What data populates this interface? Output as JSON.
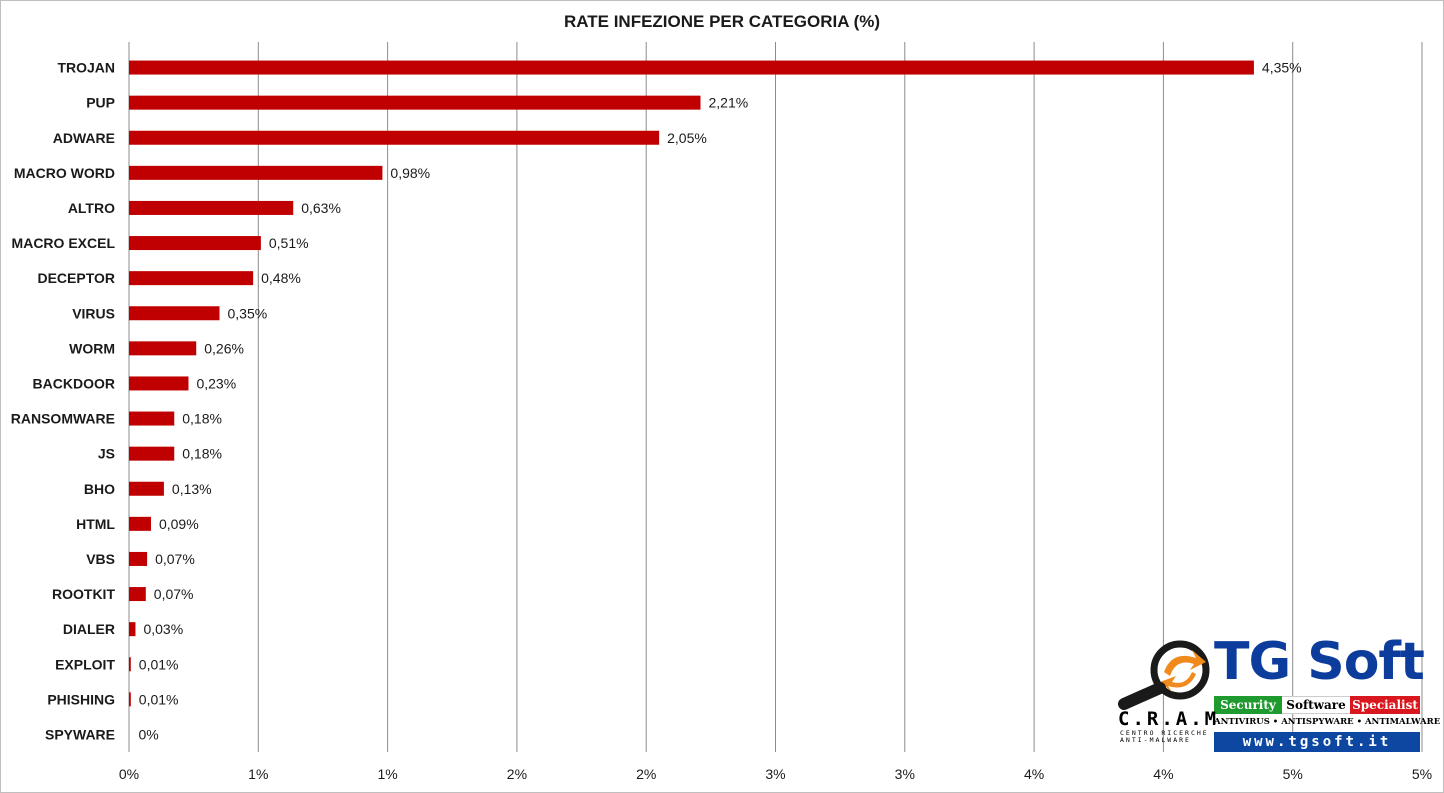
{
  "chart_data": {
    "type": "bar",
    "orientation": "horizontal",
    "title": "RATE INFEZIONE PER CATEGORIA (%)",
    "categories": [
      "TROJAN",
      "PUP",
      "ADWARE",
      "MACRO WORD",
      "ALTRO",
      "MACRO EXCEL",
      "DECEPTOR",
      "VIRUS",
      "WORM",
      "BACKDOOR",
      "RANSOMWARE",
      "JS",
      "BHO",
      "HTML",
      "VBS",
      "ROOTKIT",
      "DIALER",
      "EXPLOIT",
      "PHISHING",
      "SPYWARE"
    ],
    "values": [
      4.35,
      2.21,
      2.05,
      0.98,
      0.63,
      0.51,
      0.48,
      0.35,
      0.26,
      0.23,
      0.18,
      0.18,
      0.13,
      0.09,
      0.07,
      0.07,
      0.03,
      0.01,
      0.01,
      0
    ],
    "bar_values": [
      4.35,
      2.21,
      2.05,
      0.98,
      0.635,
      0.51,
      0.48,
      0.35,
      0.26,
      0.23,
      0.175,
      0.175,
      0.135,
      0.085,
      0.07,
      0.065,
      0.025,
      0.007,
      0.007,
      0
    ],
    "value_labels": [
      "4,35%",
      "2,21%",
      "2,05%",
      "0,98%",
      "0,63%",
      "0,51%",
      "0,48%",
      "0,35%",
      "0,26%",
      "0,23%",
      "0,18%",
      "0,18%",
      "0,13%",
      "0,09%",
      "0,07%",
      "0,07%",
      "0,03%",
      "0,01%",
      "0,01%",
      "0%"
    ],
    "tick_labels": [
      "0%",
      "1%",
      "1%",
      "2%",
      "2%",
      "3%",
      "3%",
      "4%",
      "4%",
      "5%",
      "5%"
    ],
    "xlim": [
      0,
      5
    ],
    "tick_step": 0.5,
    "grid": "vertical",
    "bar_color": "#c00000"
  },
  "logo": {
    "brand": "TG Soft",
    "strip": [
      "Security",
      "Software",
      "Specialist"
    ],
    "tagline": "ANTIVIRUS • ANTISPYWARE • ANTIMALWARE",
    "url": "www.tgsoft.it",
    "cram": "C.R.A.M",
    "cram_sub": "CENTRO RICERCHE ANTI-MALWARE",
    "colors": {
      "blue": "#0d47a1",
      "green": "#1e9a2f",
      "red": "#d8181e",
      "orange": "#f08a1c"
    }
  }
}
